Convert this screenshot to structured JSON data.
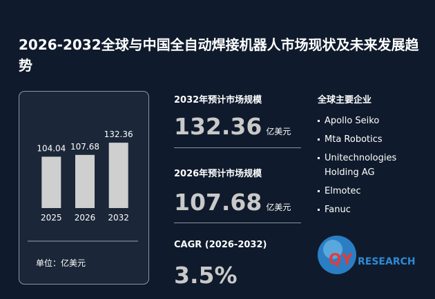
{
  "title": "2026-2032全球与中国全自动焊接机器人市场现状及未来发展趋势",
  "chart_data": {
    "type": "bar",
    "categories": [
      "2025",
      "2026",
      "2032"
    ],
    "values": [
      104.04,
      107.68,
      132.36
    ],
    "color": "#cfcfcf",
    "ylim": [
      0,
      180
    ],
    "unit_note": "单位：亿美元"
  },
  "stats": [
    {
      "label": "2032年预计市场规模",
      "value": "132.36",
      "unit": "亿美元"
    },
    {
      "label": "2026年预计市场规模",
      "value": "107.68",
      "unit": "亿美元"
    },
    {
      "label": "CAGR (2026-2032)",
      "value": "3.5%"
    }
  ],
  "companies": {
    "heading": "全球主要企业",
    "items": [
      "Apollo Seiko",
      "Mta Robotics",
      "Unitechnologies Holding AG",
      "Elmotec",
      "Fanuc"
    ]
  },
  "logo": {
    "brand": "QY",
    "name": "RESEARCH"
  }
}
